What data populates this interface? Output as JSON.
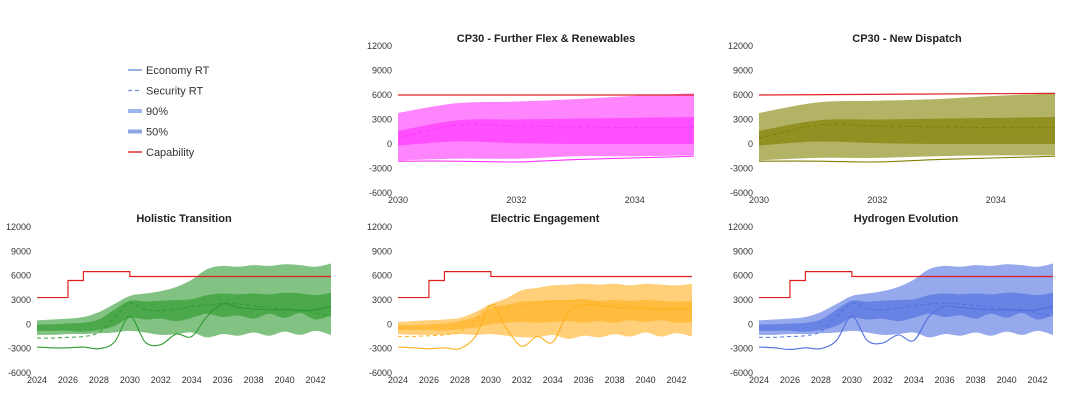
{
  "legend": {
    "items": [
      {
        "label": "Economy RT",
        "kind": "solid",
        "color": "#6b8fd6"
      },
      {
        "label": "Security RT",
        "kind": "dashed",
        "color": "#6b8fd6"
      },
      {
        "label": "90%",
        "kind": "band90",
        "color": "#9fb3ec"
      },
      {
        "label": "50%",
        "kind": "band50",
        "color": "#8fa5e6"
      },
      {
        "label": "Capability",
        "kind": "solid",
        "color": "#e02020"
      }
    ]
  },
  "chart_data": [
    {
      "id": "cp30-flex",
      "type": "area",
      "title": "CP30 - Further Flex & Renewables",
      "color": "#ff33ff",
      "xlim": [
        2030,
        2035
      ],
      "ylim": [
        -6000,
        12000
      ],
      "xticks": [
        2030,
        2032,
        2034
      ],
      "yticks": [
        -6000,
        -3000,
        0,
        3000,
        6000,
        9000,
        12000
      ],
      "x": [
        2030,
        2031,
        2032,
        2033,
        2034,
        2035
      ],
      "band90_upper": [
        3800,
        5000,
        5200,
        5500,
        5900,
        6200
      ],
      "band90_lower": [
        -2000,
        -1800,
        -1800,
        -1500,
        -1500,
        -1400
      ],
      "band50_upper": [
        1600,
        2900,
        3000,
        3100,
        3200,
        3300
      ],
      "band50_lower": [
        -200,
        300,
        100,
        0,
        0,
        0
      ],
      "security_rt": [
        700,
        2300,
        2200,
        2100,
        2000,
        2000
      ],
      "economy_rt": [
        -2100,
        -2100,
        -2200,
        -1900,
        -1700,
        -1500
      ],
      "capability_x": [
        2030,
        2035
      ],
      "capability_y": [
        6000,
        6000
      ]
    },
    {
      "id": "cp30-dispatch",
      "type": "area",
      "title": "CP30 - New Dispatch",
      "color": "#808000",
      "xlim": [
        2030,
        2035
      ],
      "ylim": [
        -6000,
        12000
      ],
      "xticks": [
        2030,
        2032,
        2034
      ],
      "yticks": [
        -6000,
        -3000,
        0,
        3000,
        6000,
        9000,
        12000
      ],
      "x": [
        2030,
        2031,
        2032,
        2033,
        2034,
        2035
      ],
      "band90_upper": [
        3800,
        5100,
        5300,
        5500,
        5900,
        6200
      ],
      "band90_lower": [
        -2000,
        -1700,
        -1700,
        -1500,
        -1400,
        -1400
      ],
      "band50_upper": [
        1600,
        2900,
        3000,
        3100,
        3200,
        3300
      ],
      "band50_lower": [
        -200,
        300,
        100,
        0,
        0,
        0
      ],
      "security_rt": [
        700,
        2300,
        2200,
        2100,
        2000,
        2000
      ],
      "economy_rt": [
        -2100,
        -2100,
        -2200,
        -1900,
        -1700,
        -1500
      ],
      "capability_x": [
        2030,
        2035
      ],
      "capability_y": [
        6000,
        6200
      ]
    },
    {
      "id": "holistic",
      "type": "area",
      "title": "Holistic Transition",
      "color": "#2e9a2e",
      "xlim": [
        2024,
        2043
      ],
      "ylim": [
        -6000,
        12000
      ],
      "xticks": [
        2024,
        2026,
        2028,
        2030,
        2032,
        2034,
        2036,
        2038,
        2040,
        2042
      ],
      "yticks": [
        -6000,
        -3000,
        0,
        3000,
        6000,
        9000,
        12000
      ],
      "x": [
        2024,
        2025,
        2026,
        2027,
        2028,
        2029,
        2030,
        2031,
        2032,
        2033,
        2034,
        2035,
        2036,
        2037,
        2038,
        2039,
        2040,
        2041,
        2042,
        2043
      ],
      "band90_upper": [
        500,
        600,
        700,
        900,
        1500,
        2500,
        3500,
        3800,
        4100,
        4600,
        5500,
        6800,
        7200,
        7100,
        7300,
        7200,
        7400,
        7300,
        7100,
        7500
      ],
      "band90_lower": [
        -1300,
        -1300,
        -1200,
        -1200,
        -1100,
        -1000,
        -800,
        -1000,
        -1300,
        -1200,
        -1000,
        -1600,
        -1200,
        -1400,
        -1000,
        -1400,
        -900,
        -1300,
        -800,
        -1300
      ],
      "band50_upper": [
        0,
        0,
        100,
        200,
        600,
        1800,
        2900,
        2800,
        2900,
        3000,
        3100,
        3600,
        3800,
        3700,
        3800,
        3700,
        3900,
        3800,
        3600,
        3900
      ],
      "band50_lower": [
        -800,
        -800,
        -800,
        -900,
        -700,
        -200,
        800,
        600,
        700,
        400,
        800,
        1300,
        900,
        1100,
        700,
        1300,
        800,
        1400,
        600,
        1100
      ],
      "security_rt": [
        -1700,
        -1700,
        -1600,
        -1500,
        -1000,
        800,
        2600,
        1800,
        1700,
        1900,
        2200,
        2400,
        2600,
        2500,
        2300,
        2100,
        1900,
        1800,
        1400,
        1000
      ],
      "economy_rt": [
        -2800,
        -2900,
        -2900,
        -2800,
        -3000,
        -2200,
        1000,
        -2200,
        -2500,
        -1200,
        -1500,
        1000,
        2500,
        2100,
        1900,
        1800,
        1800,
        1700,
        1800,
        2200
      ],
      "capability_x": [
        2024,
        2026,
        2026,
        2027,
        2027,
        2030,
        2030,
        2043
      ],
      "capability_y": [
        3300,
        3300,
        5400,
        5400,
        6500,
        6500,
        5900,
        5900
      ]
    },
    {
      "id": "electric",
      "type": "area",
      "title": "Electric Engagement",
      "color": "#ffb020",
      "xlim": [
        2024,
        2043
      ],
      "ylim": [
        -6000,
        12000
      ],
      "xticks": [
        2024,
        2026,
        2028,
        2030,
        2032,
        2034,
        2036,
        2038,
        2040,
        2042
      ],
      "yticks": [
        -6000,
        -3000,
        0,
        3000,
        6000,
        9000,
        12000
      ],
      "x": [
        2024,
        2025,
        2026,
        2027,
        2028,
        2029,
        2030,
        2031,
        2032,
        2033,
        2034,
        2035,
        2036,
        2037,
        2038,
        2039,
        2040,
        2041,
        2042,
        2043
      ],
      "band90_upper": [
        300,
        400,
        500,
        600,
        800,
        1500,
        2500,
        3200,
        4200,
        4500,
        4800,
        4900,
        5000,
        4900,
        5000,
        4800,
        5000,
        4900,
        4800,
        5000
      ],
      "band90_lower": [
        -1200,
        -1300,
        -1300,
        -1300,
        -1200,
        -1300,
        -1200,
        -1400,
        -1600,
        -1600,
        -1300,
        -1800,
        -1400,
        -1600,
        -1200,
        -1500,
        -1000,
        -1500,
        -1100,
        -1500
      ],
      "band50_upper": [
        -100,
        -100,
        0,
        100,
        400,
        900,
        2000,
        2400,
        2800,
        2900,
        3000,
        3000,
        3100,
        2900,
        3000,
        2900,
        3000,
        2900,
        2800,
        2900
      ],
      "band50_lower": [
        -700,
        -700,
        -700,
        -800,
        -600,
        -400,
        0,
        200,
        300,
        200,
        300,
        400,
        200,
        400,
        200,
        500,
        300,
        500,
        200,
        300
      ],
      "security_rt": [
        -1500,
        -1500,
        -1400,
        -1300,
        -900,
        600,
        2400,
        2000,
        2300,
        2600,
        2800,
        2900,
        2800,
        2600,
        2400,
        2300,
        2100,
        2000,
        1900,
        1700
      ],
      "economy_rt": [
        -2800,
        -2900,
        -3000,
        -2900,
        -3000,
        -1500,
        2300,
        -500,
        -2700,
        -1500,
        -2200,
        1500,
        2400,
        2300,
        2100,
        2000,
        1900,
        1800,
        1900,
        2000
      ],
      "capability_x": [
        2024,
        2026,
        2026,
        2027,
        2027,
        2030,
        2030,
        2043
      ],
      "capability_y": [
        3300,
        3300,
        5400,
        5400,
        6500,
        6500,
        5900,
        5900
      ]
    },
    {
      "id": "hydrogen",
      "type": "area",
      "title": "Hydrogen Evolution",
      "color": "#4f6fe0",
      "xlim": [
        2024,
        2043
      ],
      "ylim": [
        -6000,
        12000
      ],
      "xticks": [
        2024,
        2026,
        2028,
        2030,
        2032,
        2034,
        2036,
        2038,
        2040,
        2042
      ],
      "yticks": [
        -6000,
        -3000,
        0,
        3000,
        6000,
        9000,
        12000
      ],
      "x": [
        2024,
        2025,
        2026,
        2027,
        2028,
        2029,
        2030,
        2031,
        2032,
        2033,
        2034,
        2035,
        2036,
        2037,
        2038,
        2039,
        2040,
        2041,
        2042,
        2043
      ],
      "band90_upper": [
        500,
        600,
        700,
        900,
        1500,
        2500,
        3500,
        3800,
        4100,
        4600,
        5500,
        6800,
        7200,
        7100,
        7300,
        7200,
        7400,
        7300,
        7100,
        7500
      ],
      "band90_lower": [
        -1300,
        -1300,
        -1200,
        -1200,
        -1100,
        -1000,
        -800,
        -1000,
        -1300,
        -1200,
        -1000,
        -1600,
        -1200,
        -1400,
        -1000,
        -1400,
        -900,
        -1300,
        -800,
        -1300
      ],
      "band50_upper": [
        0,
        0,
        100,
        200,
        600,
        1800,
        2900,
        2800,
        2900,
        3000,
        3100,
        3600,
        3800,
        3700,
        3800,
        3700,
        3900,
        3800,
        3600,
        3900
      ],
      "band50_lower": [
        -800,
        -800,
        -800,
        -900,
        -700,
        -200,
        800,
        600,
        700,
        400,
        800,
        1300,
        900,
        1100,
        700,
        1300,
        800,
        1400,
        600,
        1100
      ],
      "security_rt": [
        -1600,
        -1600,
        -1500,
        -1400,
        -900,
        900,
        2600,
        1900,
        1800,
        2000,
        2300,
        2500,
        2600,
        2500,
        2300,
        2100,
        1900,
        1800,
        1400,
        1000
      ],
      "economy_rt": [
        -2800,
        -2900,
        -3100,
        -2900,
        -3000,
        -2000,
        1000,
        -2000,
        -2300,
        -1300,
        -2000,
        1000,
        2200,
        2100,
        1900,
        1800,
        1800,
        1700,
        1800,
        2200
      ],
      "capability_x": [
        2024,
        2026,
        2026,
        2027,
        2027,
        2030,
        2030,
        2043
      ],
      "capability_y": [
        3300,
        3300,
        5400,
        5400,
        6500,
        6500,
        5900,
        5900
      ]
    }
  ]
}
